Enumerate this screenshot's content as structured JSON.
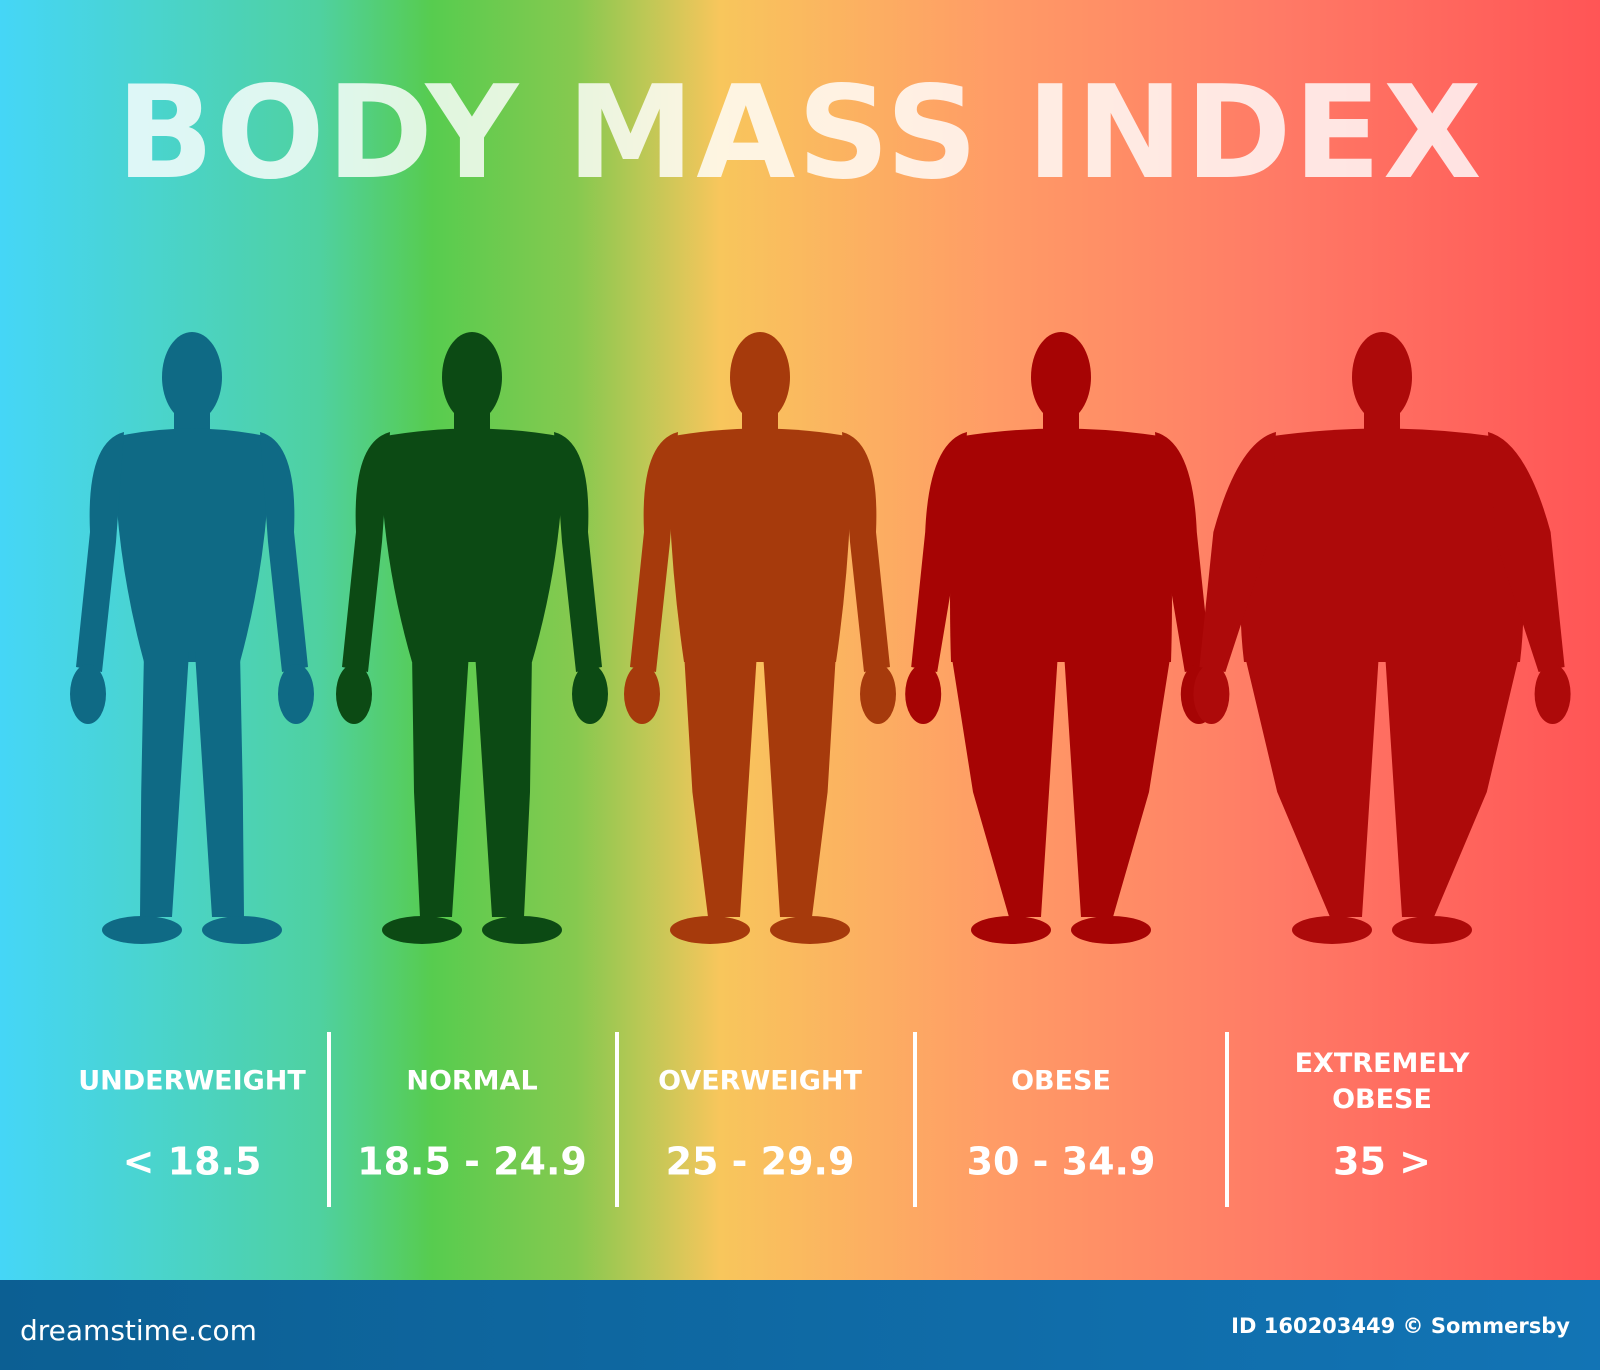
{
  "header": {
    "title": "BODY MASS INDEX"
  },
  "categories": [
    {
      "label": "UNDERWEIGHT",
      "range": "< 18.5"
    },
    {
      "label": "NORMAL",
      "range": "18.5 - 24.9"
    },
    {
      "label": "OVERWEIGHT",
      "range": "25 - 29.9"
    },
    {
      "label": "OBESE",
      "range": "30 - 34.9"
    },
    {
      "label": "EXTREMELY OBESE",
      "range": "35 >"
    }
  ],
  "footer": {
    "site": "dreamstime.com",
    "credit": "ID 160203449 © Sommersby"
  }
}
